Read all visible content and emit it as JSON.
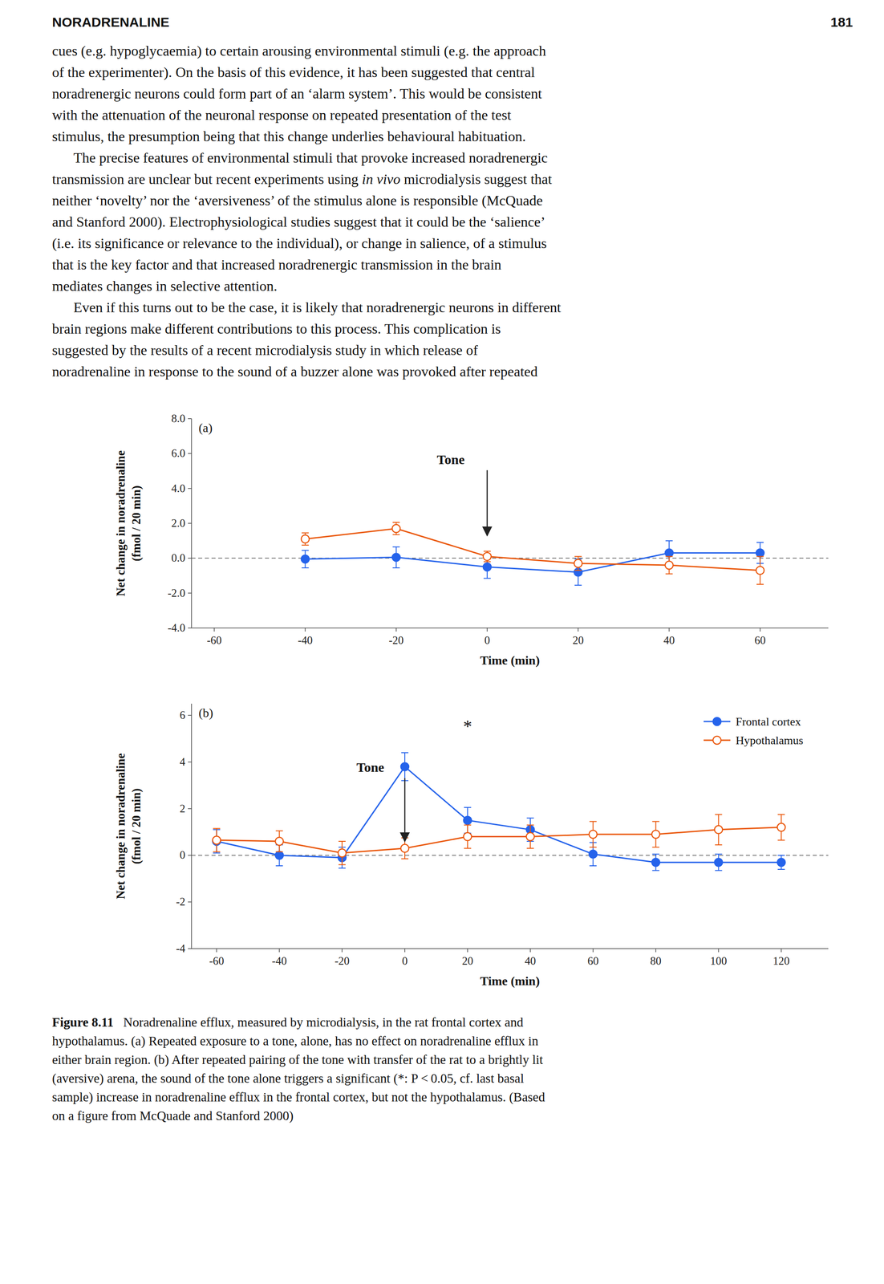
{
  "page_header_left": "NORADRENALINE",
  "page_header_right": "181",
  "body_text": [
    {
      "text": "cues (e.g. hypoglycaemia) to certain arousing environmental stimuli (e.g. the approach",
      "indent": false
    },
    {
      "text": "of the experimenter). On the basis of this evidence, it has been suggested that central",
      "indent": false
    },
    {
      "text": "noradrenergic neurons could form part of an ‘alarm system’. This would be consistent",
      "indent": false
    },
    {
      "text": "with the attenuation of the neuronal response on repeated presentation of the test",
      "indent": false
    },
    {
      "text": "stimulus, the presumption being that this change underlies behavioural habituation.",
      "indent": false
    },
    {
      "text": "The precise features of environmental stimuli that provoke increased noradrenergic",
      "indent": true
    },
    {
      "text": "transmission are unclear but recent experiments using in vivo microdialysis suggest that",
      "indent": false,
      "italic": "in vivo"
    },
    {
      "text": "neither ‘novelty’ nor the ‘aversiveness’ of the stimulus alone is responsible (McQuade",
      "indent": false
    },
    {
      "text": "and Stanford 2000). Electrophysiological studies suggest that it could be the ‘salience’",
      "indent": false
    },
    {
      "text": "(i.e. its significance or relevance to the individual), or change in salience, of a stimulus",
      "indent": false
    },
    {
      "text": "that is the key factor and that increased noradrenergic transmission in the brain",
      "indent": false
    },
    {
      "text": "mediates changes in selective attention.",
      "indent": false
    },
    {
      "text": "Even if this turns out to be the case, it is likely that noradrenergic neurons in different",
      "indent": true
    },
    {
      "text": "brain regions make different contributions to this process. This complication is",
      "indent": false
    },
    {
      "text": "suggested by the results of a recent microdialysis study in which release of",
      "indent": false
    },
    {
      "text": "noradrenaline in response to the sound of a buzzer alone was provoked after repeated",
      "indent": false
    }
  ],
  "chart_data": [
    {
      "type": "line",
      "title": "(a)",
      "x_label": "Time (min)",
      "y_label": "Net change in noradrenaline\n(fmol / 20 min)",
      "grid": false,
      "series": [
        {
          "name": "Frontal cortex",
          "color": "#2563eb",
          "marker": "filled-circle",
          "x": [
            -40,
            -20,
            0,
            20,
            40,
            60
          ],
          "values": [
            -0.05,
            0.05,
            -0.5,
            -0.8,
            0.3,
            0.3
          ],
          "errors": [
            0.5,
            0.6,
            0.65,
            0.75,
            0.7,
            0.6
          ]
        },
        {
          "name": "Hypothalamus",
          "color": "#ea580c",
          "marker": "open-circle",
          "x": [
            -40,
            -20,
            0,
            20,
            40,
            60
          ],
          "values": [
            1.1,
            1.7,
            0.1,
            -0.3,
            -0.4,
            -0.7
          ],
          "errors": [
            0.35,
            0.35,
            0.3,
            0.4,
            0.5,
            0.8
          ]
        }
      ],
      "reference_lines": [
        {
          "y": 0,
          "line_style": "dashed"
        }
      ],
      "annotations": [
        {
          "text": "Tone",
          "x": -8,
          "y": 5.3,
          "arrow_x": 0,
          "arrow_y": 1.3
        }
      ],
      "xlim": [
        -65,
        75
      ],
      "xticks": [
        -60,
        -40,
        -20,
        0,
        20,
        40,
        60
      ],
      "ylim": [
        -4.0,
        8.0
      ],
      "yticks": [
        {
          "value": -4.0,
          "label": "-4.0"
        },
        {
          "value": -2.0,
          "label": "-2.0"
        },
        {
          "value": 0.0,
          "label": "0.0"
        },
        {
          "value": 2.0,
          "label": "2.0"
        },
        {
          "value": 4.0,
          "label": "4.0"
        },
        {
          "value": 6.0,
          "label": "6.0"
        },
        {
          "value": 8.0,
          "label": "8.0"
        }
      ]
    },
    {
      "type": "line",
      "title": "(b)",
      "x_label": "Time (min)",
      "y_label": "Net change in noradrenaline\n(fmol / 20 min)",
      "grid": false,
      "legend": "upper right",
      "series": [
        {
          "name": "Frontal cortex",
          "color": "#2563eb",
          "marker": "filled-circle",
          "x": [
            -60,
            -40,
            -20,
            0,
            20,
            40,
            60,
            80,
            100,
            120
          ],
          "values": [
            0.6,
            0.0,
            -0.1,
            3.8,
            1.5,
            1.1,
            0.05,
            -0.3,
            -0.3,
            -0.3
          ],
          "errors": [
            0.5,
            0.45,
            0.45,
            0.6,
            0.55,
            0.5,
            0.5,
            0.35,
            0.35,
            0.3
          ]
        },
        {
          "name": "Hypothalamus",
          "color": "#ea580c",
          "marker": "open-circle",
          "x": [
            -60,
            -40,
            -20,
            0,
            20,
            40,
            60,
            80,
            100,
            120
          ],
          "values": [
            0.65,
            0.6,
            0.1,
            0.3,
            0.8,
            0.8,
            0.9,
            0.9,
            1.1,
            1.2
          ],
          "errors": [
            0.5,
            0.45,
            0.5,
            0.45,
            0.5,
            0.5,
            0.55,
            0.55,
            0.65,
            0.55
          ]
        }
      ],
      "reference_lines": [
        {
          "y": 0,
          "line_style": "dashed"
        }
      ],
      "annotations": [
        {
          "text": "Tone",
          "x": -11,
          "y": 3.5,
          "arrow_x": 0,
          "arrow_y": 0.6
        },
        {
          "text": "*",
          "x": 20,
          "y": 5.2
        }
      ],
      "xlim": [
        -68,
        135
      ],
      "xticks": [
        -60,
        -40,
        -20,
        0,
        20,
        40,
        60,
        80,
        100,
        120
      ],
      "ylim": [
        -4.0,
        6.5
      ],
      "yticks": [
        -4,
        -2,
        0,
        2,
        4,
        6
      ]
    }
  ],
  "caption_bold": "Figure 8.11",
  "caption_normal": "   Noradrenaline efflux, measured by microdialysis, in the rat frontal cortex and",
  "caption_rest": [
    "hypothalamus. (a) Repeated exposure to a tone, alone, has no effect on noradrenaline efflux in",
    "either brain region. (b) After repeated pairing of the tone with transfer of the rat to a brightly lit",
    "(aversive) arena, the sound of the tone alone triggers a significant (*: P < 0.05, cf. last basal",
    "sample) increase in noradrenaline efflux in the frontal cortex, but not the hypothalamus. (Based",
    "on a figure from McQuade and Stanford 2000)"
  ]
}
